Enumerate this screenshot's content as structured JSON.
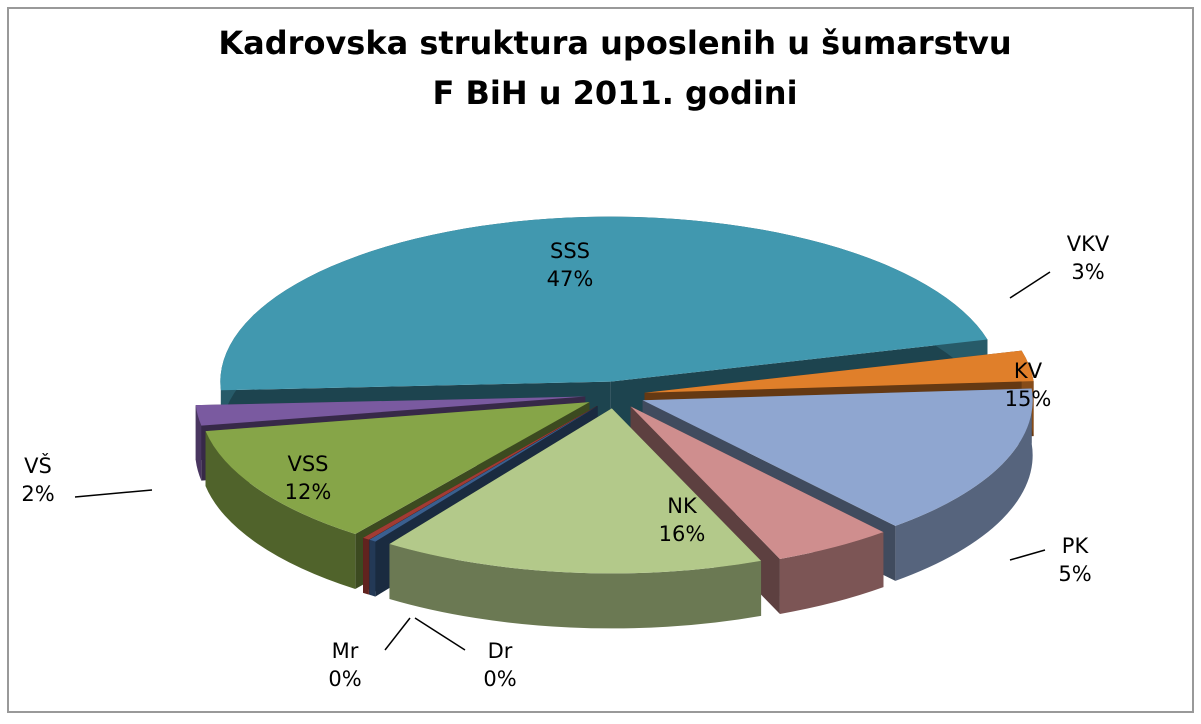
{
  "chart_data": {
    "type": "pie",
    "title": [
      "Kadrovska struktura uposlenih u šumarstvu",
      "F BiH u 2011. godini"
    ],
    "categories": [
      "SSS",
      "VKV",
      "KV",
      "PK",
      "NK",
      "Dr",
      "Mr",
      "VSS",
      "VŠ"
    ],
    "values": [
      47,
      3,
      15,
      5,
      16,
      0.3,
      0.3,
      12,
      2
    ],
    "value_labels": [
      "47%",
      "3%",
      "15%",
      "5%",
      "16%",
      "0%",
      "0%",
      "12%",
      "2%"
    ],
    "colors": [
      "#4198af",
      "#e07f2a",
      "#8fa6d0",
      "#cf8e8e",
      "#b3c98a",
      "#3a5f8f",
      "#a23b33",
      "#86a548",
      "#7a5aa0"
    ]
  }
}
